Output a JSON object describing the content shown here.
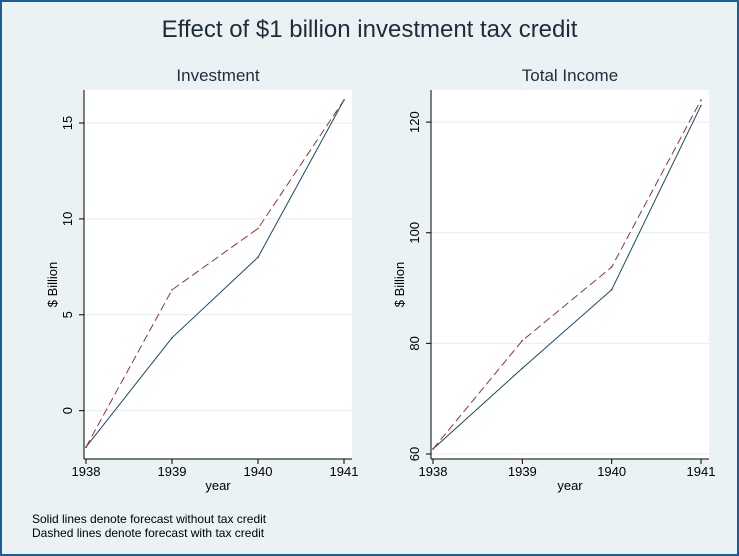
{
  "figure": {
    "title": "Effect of $1 billion investment tax credit",
    "notes": [
      "Solid lines denote forecast without tax credit",
      "Dashed lines denote forecast with tax credit"
    ],
    "colors": {
      "background": "#eaf2f3",
      "plot_area": "#ffffff",
      "border": "#1c5d99",
      "solid_series": "#1a476f",
      "dashed_series": "#90353b"
    }
  },
  "chart_data": [
    {
      "type": "line",
      "title": "Investment",
      "xlabel": "year",
      "ylabel": "$ Billion",
      "x": [
        1938,
        1939,
        1940,
        1941
      ],
      "xticks": [
        1938,
        1939,
        1940,
        1941
      ],
      "yticks": [
        0,
        5,
        10,
        15
      ],
      "xlim": [
        1938,
        1941
      ],
      "ylim": [
        -2,
        16.2
      ],
      "grid": true,
      "series": [
        {
          "style": "solid",
          "color": "#1a476f",
          "values": [
            -1.9,
            3.8,
            8.0,
            16.2
          ]
        },
        {
          "style": "dashed",
          "color": "#90353b",
          "values": [
            -1.9,
            6.3,
            9.5,
            16.2
          ]
        }
      ]
    },
    {
      "type": "line",
      "title": "Total Income",
      "xlabel": "year",
      "ylabel": "$ Billion",
      "x": [
        1938,
        1939,
        1940,
        1941
      ],
      "xticks": [
        1938,
        1939,
        1940,
        1941
      ],
      "yticks": [
        60,
        80,
        100,
        120
      ],
      "xlim": [
        1938,
        1941
      ],
      "ylim": [
        60.9,
        124
      ],
      "grid": true,
      "series": [
        {
          "style": "solid",
          "color": "#1a476f",
          "values": [
            60.9,
            75.5,
            89.7,
            123.0
          ]
        },
        {
          "style": "dashed",
          "color": "#90353b",
          "values": [
            60.9,
            80.5,
            93.8,
            124.0
          ]
        }
      ]
    }
  ]
}
